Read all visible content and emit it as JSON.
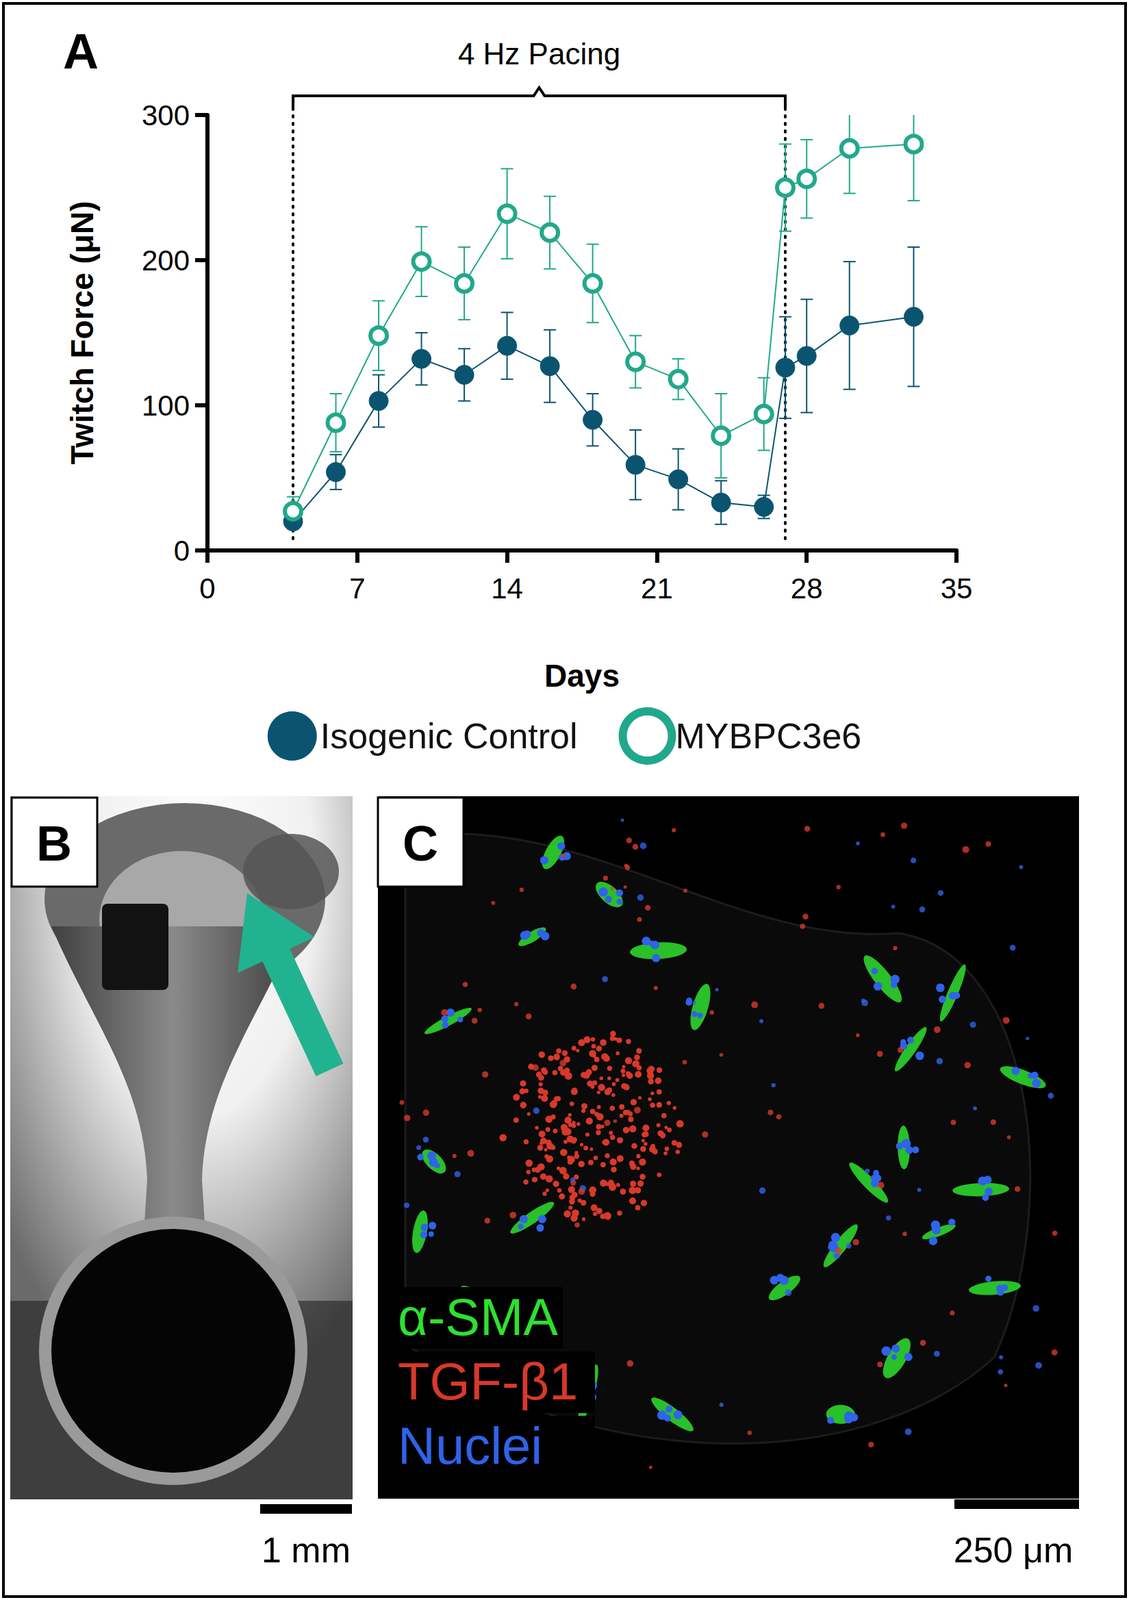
{
  "chart_data": {
    "type": "line",
    "panel_label": "A",
    "x_label": "Days",
    "y_label": "Twitch Force (μN)",
    "x": [
      4,
      6,
      8,
      10,
      12,
      14,
      16,
      18,
      20,
      22,
      24,
      26,
      27,
      28,
      30,
      33
    ],
    "series": [
      {
        "name": "Isogenic Control",
        "color": "#0b5470",
        "marker": "filled circle",
        "values": [
          20,
          54,
          103,
          132,
          121,
          141,
          127,
          90,
          59,
          49,
          33,
          30,
          126,
          134,
          155,
          161
        ],
        "errors": [
          5,
          12,
          18,
          18,
          18,
          23,
          25,
          18,
          24,
          21,
          15,
          8,
          35,
          39,
          44,
          48
        ]
      },
      {
        "name": "MYBPC3e6",
        "color": "#21a88a",
        "marker": "open circle",
        "values": [
          27,
          88,
          148,
          199,
          184,
          232,
          219,
          184,
          130,
          118,
          79,
          94,
          250,
          256,
          277,
          280
        ],
        "errors": [
          10,
          20,
          24,
          24,
          25,
          31,
          25,
          27,
          18,
          14,
          29,
          25,
          30,
          27,
          31,
          39
        ]
      }
    ],
    "annotations": [
      {
        "text": "4 Hz Pacing",
        "x_start": 4,
        "x_end": 27
      }
    ],
    "xlim": [
      0,
      35
    ],
    "xticks": [
      0,
      7,
      14,
      21,
      28,
      35
    ],
    "ylim": [
      0,
      300
    ],
    "yticks": [
      0,
      100,
      200,
      300
    ],
    "grid": false,
    "legend": "bottom"
  },
  "panel_b": {
    "panel_label": "B",
    "scale_bar": "1 mm",
    "arrow_color": "#21b38f"
  },
  "panel_c": {
    "panel_label": "C",
    "scale_bar": "250 μm",
    "channels": [
      {
        "name": "α-SMA",
        "color": "#2fe02f"
      },
      {
        "name": "TGF-β1",
        "color": "#d8392a"
      },
      {
        "name": "Nuclei",
        "color": "#2f63ea"
      }
    ]
  }
}
